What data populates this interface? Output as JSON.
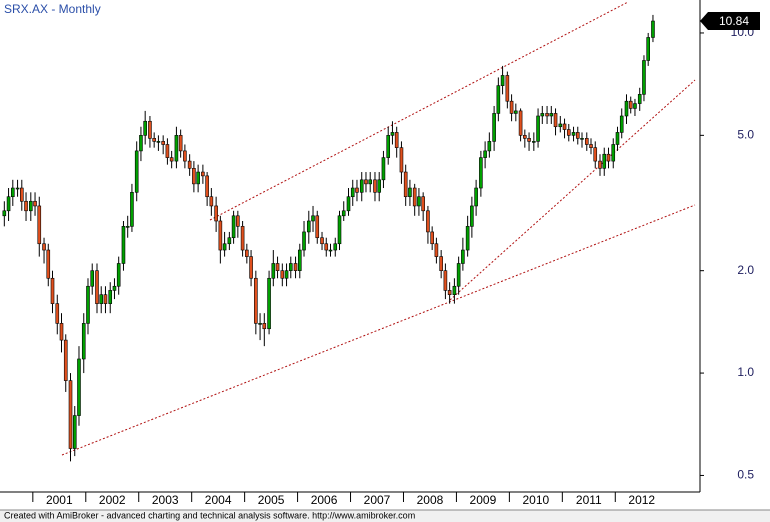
{
  "chart_data": {
    "type": "candlestick",
    "title": "SRX.AX - Monthly",
    "footer": "Created with AmiBroker - advanced charting and technical analysis software. http://www.amibroker.com",
    "log_scale": true,
    "up_color": "#00a000",
    "down_color": "#e0501e",
    "x": [
      2000.42,
      2000.5,
      2000.58,
      2000.67,
      2000.75,
      2000.83,
      2000.92,
      2001,
      2001.08,
      2001.17,
      2001.25,
      2001.33,
      2001.42,
      2001.5,
      2001.58,
      2001.67,
      2001.75,
      2001.83,
      2001.92,
      2002,
      2002.08,
      2002.17,
      2002.25,
      2002.33,
      2002.42,
      2002.5,
      2002.58,
      2002.67,
      2002.75,
      2002.83,
      2002.92,
      2003,
      2003.08,
      2003.17,
      2003.25,
      2003.33,
      2003.42,
      2003.5,
      2003.58,
      2003.67,
      2003.75,
      2003.83,
      2003.92,
      2004,
      2004.08,
      2004.17,
      2004.25,
      2004.33,
      2004.42,
      2004.5,
      2004.58,
      2004.67,
      2004.75,
      2004.83,
      2004.92,
      2005,
      2005.08,
      2005.17,
      2005.25,
      2005.33,
      2005.42,
      2005.5,
      2005.58,
      2005.67,
      2005.75,
      2005.83,
      2005.92,
      2006,
      2006.08,
      2006.17,
      2006.25,
      2006.33,
      2006.42,
      2006.5,
      2006.58,
      2006.67,
      2006.75,
      2006.83,
      2006.92,
      2007,
      2007.08,
      2007.17,
      2007.25,
      2007.33,
      2007.42,
      2007.5,
      2007.58,
      2007.67,
      2007.75,
      2007.83,
      2007.92,
      2008,
      2008.08,
      2008.17,
      2008.25,
      2008.33,
      2008.42,
      2008.5,
      2008.58,
      2008.67,
      2008.75,
      2008.83,
      2008.92,
      2009,
      2009.08,
      2009.17,
      2009.25,
      2009.33,
      2009.42,
      2009.5,
      2009.58,
      2009.67,
      2009.75,
      2009.83,
      2009.92,
      2010,
      2010.08,
      2010.17,
      2010.25,
      2010.33,
      2010.42,
      2010.5,
      2010.58,
      2010.67,
      2010.75,
      2010.83,
      2010.92,
      2011,
      2011.08,
      2011.17,
      2011.25,
      2011.33,
      2011.42,
      2011.5,
      2011.58,
      2011.67,
      2011.75,
      2011.83,
      2011.92,
      2012,
      2012.08,
      2012.17,
      2012.25,
      2012.33,
      2012.42,
      2012.5,
      2012.58,
      2012.67
    ],
    "open": [
      2.9,
      3.0,
      3.3,
      3.5,
      3.5,
      3.2,
      3.0,
      3.2,
      3.1,
      2.4,
      2.3,
      1.9,
      1.6,
      1.4,
      1.25,
      0.95,
      0.6,
      0.75,
      1.1,
      1.4,
      1.8,
      2.0,
      1.6,
      1.7,
      1.6,
      1.75,
      1.8,
      2.1,
      2.7,
      2.7,
      3.4,
      4.5,
      5.0,
      5.5,
      4.9,
      4.8,
      4.8,
      4.7,
      4.3,
      4.2,
      5.0,
      4.5,
      4.2,
      4.0,
      3.6,
      3.9,
      3.8,
      3.3,
      3.1,
      2.8,
      2.3,
      2.4,
      2.5,
      2.9,
      2.7,
      2.3,
      2.2,
      1.9,
      1.4,
      1.4,
      1.35,
      1.9,
      2.1,
      2.0,
      1.9,
      2.0,
      2.1,
      2.0,
      2.3,
      2.6,
      2.8,
      2.9,
      2.5,
      2.4,
      2.3,
      2.3,
      2.4,
      2.9,
      3.0,
      3.3,
      3.5,
      3.4,
      3.7,
      3.6,
      3.7,
      3.4,
      3.7,
      4.3,
      5.0,
      5.1,
      4.6,
      3.9,
      3.3,
      3.5,
      3.1,
      3.3,
      3.0,
      2.6,
      2.4,
      2.2,
      2.0,
      1.75,
      1.7,
      1.8,
      2.1,
      2.3,
      2.7,
      3.1,
      3.5,
      4.3,
      4.5,
      4.8,
      5.8,
      7.0,
      7.5,
      6.3,
      5.8,
      5.9,
      5.0,
      4.9,
      4.8,
      4.8,
      5.7,
      5.8,
      5.7,
      5.8,
      5.3,
      5.4,
      5.2,
      5.0,
      5.1,
      4.9,
      4.9,
      4.7,
      4.6,
      4.2,
      4.0,
      4.4,
      4.2,
      4.7,
      5.1,
      5.7,
      6.3,
      6.0,
      6.2,
      6.6,
      8.3,
      9.7
    ],
    "high": [
      3.2,
      3.5,
      3.7,
      3.7,
      3.7,
      3.4,
      3.4,
      3.4,
      3.3,
      2.5,
      2.4,
      2.0,
      1.7,
      1.5,
      1.3,
      1.0,
      0.8,
      1.2,
      1.5,
      1.9,
      2.1,
      2.1,
      1.8,
      1.8,
      1.85,
      1.9,
      2.2,
      2.8,
      2.9,
      3.6,
      4.8,
      5.3,
      5.9,
      5.7,
      5.1,
      5.0,
      5.0,
      4.9,
      4.5,
      5.3,
      5.2,
      4.7,
      4.4,
      4.2,
      4.1,
      4.1,
      3.9,
      3.5,
      3.3,
      2.9,
      2.6,
      2.6,
      3.0,
      3.0,
      2.8,
      2.4,
      2.3,
      2.0,
      1.5,
      1.5,
      2.0,
      2.3,
      2.2,
      2.1,
      2.1,
      2.2,
      2.2,
      2.4,
      2.8,
      3.0,
      3.1,
      3.0,
      2.6,
      2.5,
      2.4,
      2.5,
      3.0,
      3.2,
      3.5,
      3.7,
      3.7,
      3.9,
      3.9,
      3.9,
      3.9,
      3.9,
      4.5,
      5.3,
      5.5,
      5.3,
      4.8,
      4.1,
      3.7,
      3.6,
      3.5,
      3.4,
      3.1,
      2.7,
      2.5,
      2.3,
      2.1,
      1.85,
      1.9,
      2.2,
      2.5,
      2.9,
      3.3,
      3.7,
      4.5,
      4.8,
      5.1,
      6.1,
      7.4,
      8.0,
      7.7,
      6.6,
      6.2,
      6.0,
      5.2,
      5.1,
      5.1,
      6.0,
      6.1,
      6.1,
      6.1,
      6.0,
      5.7,
      5.6,
      5.4,
      5.3,
      5.3,
      5.1,
      5.1,
      4.9,
      4.8,
      4.4,
      4.6,
      4.6,
      4.9,
      5.3,
      6.0,
      6.6,
      6.5,
      6.4,
      6.9,
      8.6,
      10.0,
      11.3
    ],
    "low": [
      2.7,
      2.8,
      3.1,
      3.3,
      3.0,
      2.8,
      2.8,
      2.9,
      2.2,
      2.1,
      1.8,
      1.5,
      1.3,
      1.15,
      0.88,
      0.55,
      0.57,
      0.7,
      1.0,
      1.3,
      1.7,
      1.5,
      1.5,
      1.5,
      1.5,
      1.65,
      1.7,
      2.0,
      2.5,
      2.6,
      3.2,
      4.2,
      4.7,
      4.6,
      4.6,
      4.5,
      4.4,
      4.1,
      4.0,
      4.0,
      4.3,
      4.0,
      3.8,
      3.4,
      3.4,
      3.6,
      3.1,
      2.9,
      2.6,
      2.1,
      2.2,
      2.3,
      2.4,
      2.5,
      2.2,
      2.1,
      1.8,
      1.3,
      1.25,
      1.2,
      1.3,
      1.8,
      1.9,
      1.8,
      1.8,
      1.9,
      1.9,
      1.9,
      2.2,
      2.4,
      2.6,
      2.4,
      2.3,
      2.2,
      2.2,
      2.2,
      2.3,
      2.8,
      2.9,
      3.1,
      3.2,
      3.2,
      3.4,
      3.4,
      3.2,
      3.2,
      3.5,
      4.1,
      4.7,
      4.3,
      3.6,
      3.1,
      3.1,
      2.9,
      2.9,
      2.8,
      2.4,
      2.3,
      2.1,
      1.9,
      1.65,
      1.6,
      1.6,
      1.7,
      2.0,
      2.2,
      2.5,
      2.9,
      3.3,
      4.0,
      4.3,
      4.5,
      5.5,
      6.6,
      6.0,
      5.5,
      5.5,
      4.8,
      4.6,
      4.5,
      4.5,
      4.6,
      5.4,
      5.4,
      5.4,
      5.0,
      5.1,
      4.9,
      4.8,
      4.8,
      4.7,
      4.6,
      4.5,
      4.4,
      4.0,
      3.8,
      3.8,
      4.0,
      4.0,
      4.5,
      4.9,
      5.4,
      5.8,
      5.7,
      5.9,
      6.3,
      8.0,
      9.4
    ],
    "close": [
      3.0,
      3.3,
      3.5,
      3.5,
      3.2,
      3.0,
      3.2,
      3.1,
      2.4,
      2.3,
      1.9,
      1.6,
      1.4,
      1.25,
      0.95,
      0.6,
      0.75,
      1.1,
      1.4,
      1.8,
      2.0,
      1.6,
      1.7,
      1.6,
      1.75,
      1.8,
      2.1,
      2.7,
      2.7,
      3.4,
      4.5,
      5.0,
      5.5,
      4.9,
      4.8,
      4.8,
      4.7,
      4.3,
      4.2,
      5.0,
      4.5,
      4.2,
      4.0,
      3.6,
      3.9,
      3.8,
      3.3,
      3.1,
      2.8,
      2.3,
      2.4,
      2.5,
      2.9,
      2.7,
      2.3,
      2.2,
      1.9,
      1.4,
      1.4,
      1.35,
      1.9,
      2.1,
      2.0,
      1.9,
      2.0,
      2.1,
      2.0,
      2.3,
      2.6,
      2.8,
      2.9,
      2.5,
      2.4,
      2.3,
      2.3,
      2.4,
      2.9,
      3.0,
      3.3,
      3.5,
      3.4,
      3.7,
      3.6,
      3.7,
      3.4,
      3.7,
      4.3,
      5.0,
      5.1,
      4.6,
      3.9,
      3.3,
      3.5,
      3.1,
      3.3,
      3.0,
      2.6,
      2.4,
      2.2,
      2.0,
      1.75,
      1.7,
      1.8,
      2.1,
      2.3,
      2.7,
      3.1,
      3.5,
      4.3,
      4.5,
      4.8,
      5.8,
      7.0,
      7.5,
      6.3,
      5.8,
      5.9,
      5.0,
      4.9,
      4.8,
      4.8,
      5.7,
      5.8,
      5.7,
      5.8,
      5.3,
      5.4,
      5.2,
      5.0,
      5.1,
      4.9,
      4.9,
      4.7,
      4.6,
      4.2,
      4.0,
      4.4,
      4.2,
      4.7,
      5.1,
      5.7,
      6.3,
      6.0,
      6.2,
      6.6,
      8.3,
      9.7,
      10.84
    ],
    "xlim": [
      2000.38,
      2013.6
    ],
    "xticks": [
      2001,
      2002,
      2003,
      2004,
      2005,
      2006,
      2007,
      2008,
      2009,
      2010,
      2011,
      2012
    ],
    "ylim": [
      0.447,
      12.5
    ],
    "yticks": [
      0.5,
      {
        "value": 1,
        "label": "1.0"
      },
      {
        "value": 2,
        "label": "2.0"
      },
      {
        "value": 5,
        "label": "5.0"
      },
      {
        "value": 10,
        "label": "10.0"
      }
    ]
  }
}
